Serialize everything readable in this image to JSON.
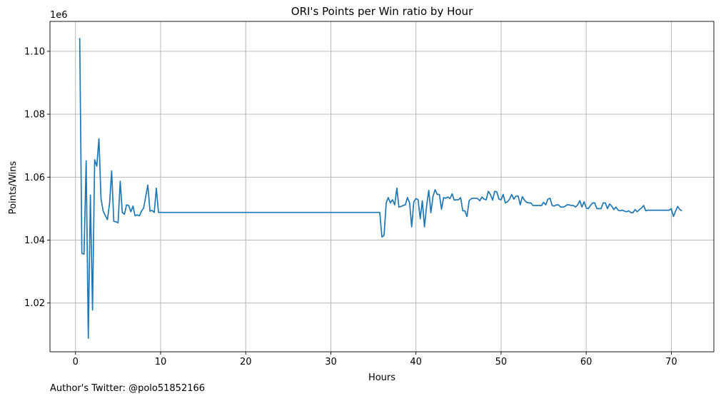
{
  "chart_data": {
    "type": "line",
    "title": "ORI's Points per Win ratio by Hour",
    "xlabel": "Hours",
    "ylabel": "Points/Wins",
    "offset_label": "1e6",
    "xlim": [
      -3,
      75
    ],
    "ylim": [
      1.0045,
      1.1095
    ],
    "xticks": [
      0,
      10,
      20,
      30,
      40,
      50,
      60,
      70
    ],
    "xtick_labels": [
      "0",
      "10",
      "20",
      "30",
      "40",
      "50",
      "60",
      "70"
    ],
    "yticks": [
      1.02,
      1.04,
      1.06,
      1.08,
      1.1
    ],
    "ytick_labels": [
      "1.02",
      "1.04",
      "1.06",
      "1.08",
      "1.10"
    ],
    "grid": true,
    "line_color": "#1f77b4",
    "series": [
      {
        "x": [
          0.5,
          0.75,
          1.0,
          1.25,
          1.5,
          1.75,
          2.0,
          2.25,
          2.5,
          2.75,
          3.0,
          3.25,
          3.5,
          3.75,
          4.0,
          4.25,
          4.5,
          4.75,
          5.0,
          5.25,
          5.5,
          5.75,
          6.0,
          6.25,
          6.5,
          6.75,
          7.0,
          7.25,
          7.5,
          7.75,
          8.0,
          8.25,
          8.5,
          8.75,
          9.0,
          9.25,
          9.5,
          9.75,
          10,
          15,
          20,
          25,
          30,
          35.75,
          36.0,
          36.25,
          36.5,
          36.75,
          37.0,
          37.25,
          37.5,
          37.75,
          38.0,
          38.25,
          38.5,
          38.75,
          39.0,
          39.25,
          39.5,
          39.75,
          40.0,
          40.25,
          40.5,
          40.75,
          41.0,
          41.25,
          41.5,
          41.75,
          42.0,
          42.25,
          42.5,
          42.75,
          43.0,
          43.25,
          43.5,
          43.75,
          44.0,
          44.25,
          44.5,
          44.75,
          45.0,
          45.25,
          45.5,
          45.75,
          46.0,
          46.25,
          46.5,
          46.75,
          47.0,
          47.25,
          47.5,
          47.75,
          48.0,
          48.25,
          48.5,
          48.75,
          49.0,
          49.25,
          49.5,
          49.75,
          50.0,
          50.25,
          50.5,
          50.75,
          51.0,
          51.25,
          51.5,
          51.75,
          52.0,
          52.25,
          52.5,
          52.75,
          53.0,
          53.25,
          53.5,
          53.75,
          54.0,
          54.25,
          54.5,
          54.75,
          55.0,
          55.25,
          55.5,
          55.75,
          56.0,
          56.25,
          56.5,
          56.75,
          57.0,
          57.25,
          57.5,
          57.75,
          58.0,
          58.25,
          58.5,
          58.75,
          59.0,
          59.25,
          59.5,
          59.75,
          60.0,
          60.25,
          60.5,
          60.75,
          61.0,
          61.25,
          61.5,
          61.75,
          62.0,
          62.25,
          62.5,
          62.75,
          63.0,
          63.25,
          63.5,
          63.75,
          64.0,
          64.25,
          64.5,
          64.75,
          65.0,
          65.25,
          65.5,
          65.75,
          66.0,
          66.25,
          66.5,
          66.75,
          67.0,
          67.25,
          67.5,
          68.0,
          68.5,
          69.0,
          69.5,
          69.75,
          70.0,
          70.25,
          70.5,
          70.75,
          71.0,
          71.25
        ],
        "y": [
          1.1042,
          1.0358,
          1.0355,
          1.0652,
          1.0088,
          1.0543,
          1.0178,
          1.0655,
          1.0635,
          1.0722,
          1.0532,
          1.0492,
          1.0478,
          1.0465,
          1.0517,
          1.062,
          1.046,
          1.0458,
          1.0455,
          1.0587,
          1.0488,
          1.0482,
          1.0512,
          1.051,
          1.049,
          1.0508,
          1.0477,
          1.048,
          1.0477,
          1.0492,
          1.0502,
          1.0538,
          1.0575,
          1.0492,
          1.0494,
          1.0488,
          1.0565,
          1.0488,
          1.0488,
          1.0488,
          1.0488,
          1.0488,
          1.0488,
          1.0488,
          1.041,
          1.0415,
          1.0518,
          1.0535,
          1.0518,
          1.0528,
          1.0512,
          1.0565,
          1.0505,
          1.0507,
          1.051,
          1.0512,
          1.0535,
          1.0518,
          1.0442,
          1.0522,
          1.0532,
          1.0528,
          1.0468,
          1.0525,
          1.0442,
          1.0508,
          1.0558,
          1.0487,
          1.0538,
          1.056,
          1.0545,
          1.0545,
          1.0498,
          1.0535,
          1.0533,
          1.0537,
          1.0532,
          1.0547,
          1.0527,
          1.0528,
          1.0528,
          1.0535,
          1.0493,
          1.0493,
          1.0475,
          1.0525,
          1.0532,
          1.0533,
          1.0533,
          1.0532,
          1.0525,
          1.0537,
          1.053,
          1.0528,
          1.0555,
          1.0545,
          1.0527,
          1.0555,
          1.0553,
          1.053,
          1.0528,
          1.0545,
          1.0518,
          1.0522,
          1.053,
          1.0545,
          1.053,
          1.054,
          1.054,
          1.0512,
          1.0538,
          1.0527,
          1.052,
          1.0518,
          1.0518,
          1.051,
          1.051,
          1.051,
          1.051,
          1.051,
          1.052,
          1.0512,
          1.053,
          1.0533,
          1.051,
          1.0508,
          1.0512,
          1.0512,
          1.0505,
          1.0505,
          1.0507,
          1.0512,
          1.0512,
          1.051,
          1.051,
          1.0505,
          1.0512,
          1.0525,
          1.0505,
          1.0522,
          1.0502,
          1.05,
          1.051,
          1.0518,
          1.0518,
          1.05,
          1.05,
          1.05,
          1.0518,
          1.0518,
          1.05,
          1.0515,
          1.0508,
          1.0497,
          1.0505,
          1.0495,
          1.0493,
          1.0495,
          1.0492,
          1.049,
          1.0493,
          1.0487,
          1.0487,
          1.0497,
          1.049,
          1.0497,
          1.0502,
          1.051,
          1.0493,
          1.0495,
          1.0495,
          1.0495,
          1.0495,
          1.0495,
          1.0495,
          1.0495,
          1.05,
          1.0475,
          1.0492,
          1.0507,
          1.0497,
          1.0493
        ]
      }
    ]
  },
  "footer": "Author's Twitter: @polo51852166"
}
